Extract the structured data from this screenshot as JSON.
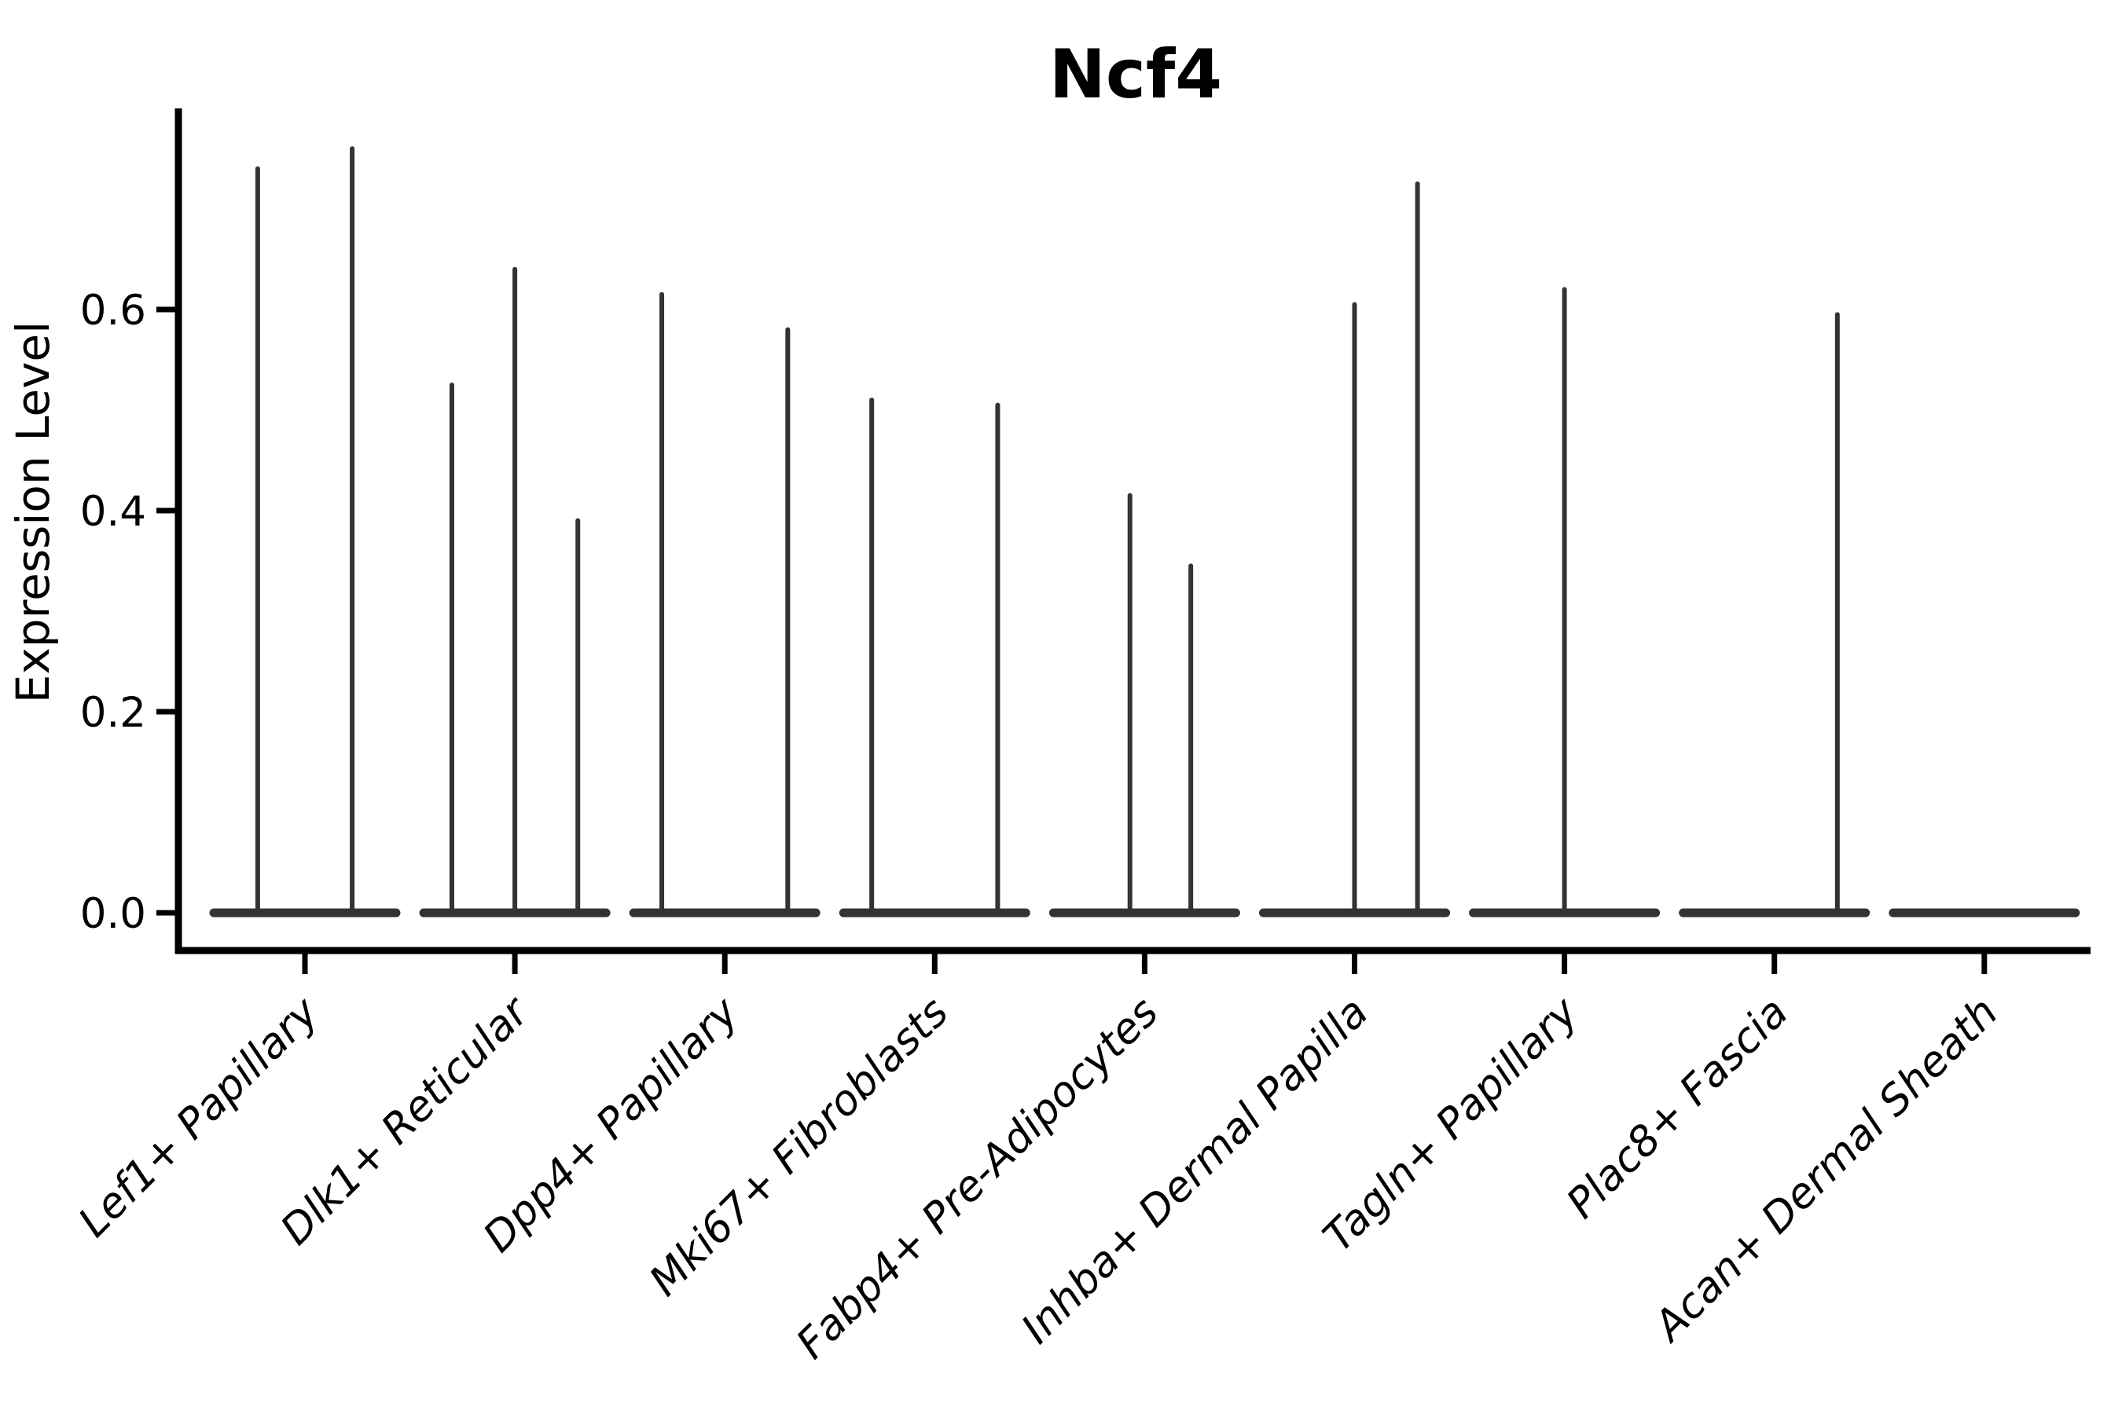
{
  "chart_data": {
    "type": "violin",
    "title": "Ncf4",
    "ylabel": "Expression Level",
    "xlabel": "",
    "grid": false,
    "legend": null,
    "background": "#ffffff",
    "axis_color": "#000000",
    "violin_color": "#333333",
    "ytick_labels": [
      "0.0",
      "0.2",
      "0.4",
      "0.6"
    ],
    "ytick_values": [
      0.0,
      0.2,
      0.4,
      0.6
    ],
    "ylim": [
      -0.0375,
      0.797
    ],
    "categories": [
      "Lef1+ Papillary",
      "Dlk1+ Reticular",
      "Dpp4+ Papillary",
      "Mki67+ Fibroblasts",
      "Fabp4+ Pre-Adipocytes",
      "Inhba+ Dermal Papilla",
      "Tagln+ Papillary",
      "Plac8+ Fascia",
      "Acan+ Dermal Sheath"
    ],
    "base_value": 0.0,
    "base_halfwidth_frac": 0.455,
    "violins": [
      {
        "category": "Lef1+ Papillary",
        "spikes": [
          {
            "pos": -0.225,
            "max": 0.74
          },
          {
            "pos": 0.225,
            "max": 0.76
          }
        ]
      },
      {
        "category": "Dlk1+ Reticular",
        "spikes": [
          {
            "pos": -0.3,
            "max": 0.525
          },
          {
            "pos": 0.0,
            "max": 0.64
          },
          {
            "pos": 0.3,
            "max": 0.39
          }
        ]
      },
      {
        "category": "Dpp4+ Papillary",
        "spikes": [
          {
            "pos": -0.3,
            "max": 0.615
          },
          {
            "pos": 0.3,
            "max": 0.58
          }
        ]
      },
      {
        "category": "Mki67+ Fibroblasts",
        "spikes": [
          {
            "pos": -0.3,
            "max": 0.51
          },
          {
            "pos": 0.3,
            "max": 0.505
          }
        ]
      },
      {
        "category": "Fabp4+ Pre-Adipocytes",
        "spikes": [
          {
            "pos": -0.07,
            "max": 0.415
          },
          {
            "pos": 0.22,
            "max": 0.345
          }
        ]
      },
      {
        "category": "Inhba+ Dermal Papilla",
        "spikes": [
          {
            "pos": 0.0,
            "max": 0.605
          },
          {
            "pos": 0.3,
            "max": 0.725
          }
        ]
      },
      {
        "category": "Tagln+ Papillary",
        "spikes": [
          {
            "pos": 0.0,
            "max": 0.62
          }
        ]
      },
      {
        "category": "Plac8+ Fascia",
        "spikes": [
          {
            "pos": 0.3,
            "max": 0.595
          }
        ]
      },
      {
        "category": "Acan+ Dermal Sheath",
        "spikes": []
      }
    ]
  }
}
